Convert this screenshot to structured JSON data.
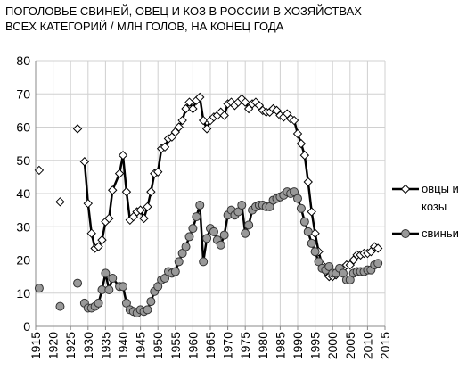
{
  "chart_data": {
    "type": "line",
    "title": "ПОГОЛОВЬЕ СВИНЕЙ, ОВЕЦ И КОЗ В РОССИИ В ХОЗЯЙСТВАХ ВСЕХ КАТЕГОРИЙ / МЛН ГОЛОВ, НА КОНЕЦ ГОДА",
    "x": [
      1916,
      1917,
      1922,
      1923,
      1927,
      1928,
      1929,
      1930,
      1931,
      1932,
      1933,
      1934,
      1935,
      1936,
      1937,
      1939,
      1940,
      1941,
      1942,
      1943,
      1944,
      1945,
      1946,
      1947,
      1948,
      1949,
      1950,
      1951,
      1952,
      1953,
      1954,
      1955,
      1956,
      1957,
      1958,
      1959,
      1960,
      1961,
      1962,
      1963,
      1964,
      1965,
      1966,
      1967,
      1968,
      1969,
      1970,
      1971,
      1972,
      1973,
      1974,
      1975,
      1976,
      1977,
      1978,
      1979,
      1980,
      1981,
      1982,
      1983,
      1984,
      1985,
      1986,
      1987,
      1988,
      1989,
      1990,
      1991,
      1992,
      1993,
      1994,
      1995,
      1996,
      1997,
      1998,
      1999,
      2000,
      2001,
      2002,
      2003,
      2004,
      2005,
      2006,
      2007,
      2008,
      2009,
      2010,
      2011,
      2012,
      2013
    ],
    "series": [
      {
        "name": "овцы и козы",
        "color": "#000000",
        "marker": "diamond",
        "values": [
          47,
          null,
          37.5,
          null,
          59.5,
          null,
          49.6,
          37,
          28,
          23.5,
          24,
          26,
          31.5,
          32.5,
          41,
          46,
          51.5,
          40.5,
          32,
          33,
          34.5,
          35,
          32.5,
          36,
          40.5,
          46,
          46.5,
          53.5,
          54,
          56.5,
          57,
          58.5,
          60,
          62,
          65.5,
          67.5,
          65.5,
          68,
          69,
          62,
          59.5,
          62,
          63,
          63.5,
          64.5,
          63.5,
          67,
          67.5,
          66.5,
          67.5,
          68.5,
          67.5,
          65.5,
          67,
          67.5,
          66.5,
          65,
          64.5,
          64.5,
          65.5,
          65,
          63.5,
          63,
          64,
          62.5,
          62,
          58,
          55,
          51.5,
          43.5,
          34.5,
          28,
          22.5,
          18.5,
          16.5,
          15,
          15,
          15.5,
          16.5,
          17.5,
          18.5,
          18.5,
          20,
          21.5,
          21.5,
          22,
          22,
          22.5,
          24,
          23.5
        ]
      },
      {
        "name": "свиньи",
        "color": "#999999",
        "marker": "circle",
        "values": [
          11.5,
          null,
          6,
          null,
          13,
          null,
          7,
          5.5,
          5.5,
          6,
          7,
          11,
          16,
          11,
          14.5,
          12,
          12,
          7,
          5,
          4.5,
          4,
          5,
          4.5,
          5,
          7.5,
          10.5,
          12,
          14,
          14.5,
          16.5,
          16,
          16.5,
          19.5,
          22,
          24,
          27,
          29.5,
          33,
          36.5,
          19.5,
          26.5,
          29.5,
          28.5,
          26,
          24.5,
          27.5,
          33.5,
          35,
          33.5,
          34.5,
          36.5,
          28,
          30.5,
          35,
          36,
          36.5,
          36.5,
          36,
          36,
          38,
          38.5,
          39,
          39.5,
          40.5,
          40,
          40.5,
          38.5,
          35.5,
          31.5,
          28.5,
          25,
          22.5,
          19.5,
          17.5,
          17,
          18,
          16,
          16,
          17.5,
          16,
          14,
          14,
          16,
          16.5,
          16.5,
          16.5,
          17,
          17,
          18.5,
          19
        ]
      }
    ],
    "xlim": [
      1915,
      2015
    ],
    "xticks": [
      1915,
      1920,
      1925,
      1930,
      1935,
      1940,
      1945,
      1950,
      1955,
      1960,
      1965,
      1970,
      1975,
      1980,
      1985,
      1990,
      1995,
      2000,
      2005,
      2010,
      2015
    ],
    "ylim": [
      0,
      80
    ],
    "yticks": [
      0,
      10,
      20,
      30,
      40,
      50,
      60,
      70,
      80
    ],
    "grid": true,
    "legend": "right"
  }
}
